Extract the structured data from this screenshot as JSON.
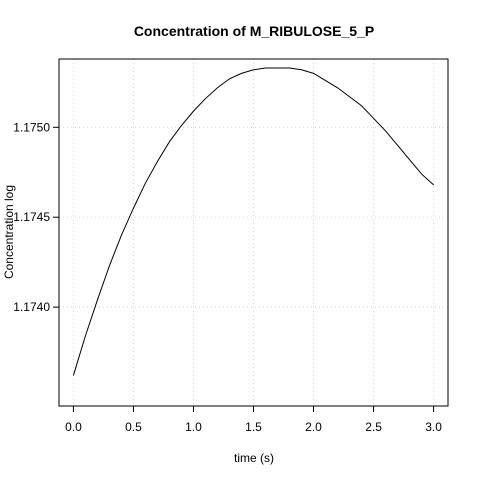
{
  "chart_data": {
    "type": "line",
    "title": "Concentration of M_RIBULOSE_5_P",
    "xlabel": "time (s)",
    "ylabel": "Concentration log",
    "xlim": [
      -0.12,
      3.12
    ],
    "ylim": [
      1.17345,
      1.17538
    ],
    "x_ticks": [
      0.0,
      0.5,
      1.0,
      1.5,
      2.0,
      2.5,
      3.0
    ],
    "x_tick_labels": [
      "0.0",
      "0.5",
      "1.0",
      "1.5",
      "2.0",
      "2.5",
      "3.0"
    ],
    "y_ticks": [
      1.174,
      1.1745,
      1.175
    ],
    "y_tick_labels": [
      "1.1740",
      "1.1745",
      "1.1750"
    ],
    "grid": true,
    "series": [
      {
        "color": "#000000",
        "x": [
          0.0,
          0.1,
          0.2,
          0.3,
          0.4,
          0.5,
          0.6,
          0.7,
          0.8,
          0.9,
          1.0,
          1.1,
          1.2,
          1.3,
          1.4,
          1.5,
          1.6,
          1.7,
          1.8,
          1.9,
          2.0,
          2.1,
          2.2,
          2.3,
          2.4,
          2.5,
          2.6,
          2.7,
          2.8,
          2.9,
          3.0
        ],
        "y": [
          1.17362,
          1.17384,
          1.17404,
          1.17423,
          1.1744,
          1.17455,
          1.17469,
          1.17481,
          1.17492,
          1.17501,
          1.17509,
          1.17516,
          1.17522,
          1.17527,
          1.1753,
          1.17532,
          1.17533,
          1.17533,
          1.17533,
          1.17532,
          1.1753,
          1.17526,
          1.17522,
          1.17517,
          1.17512,
          1.17505,
          1.17498,
          1.1749,
          1.17482,
          1.17474,
          1.17468
        ]
      }
    ]
  }
}
